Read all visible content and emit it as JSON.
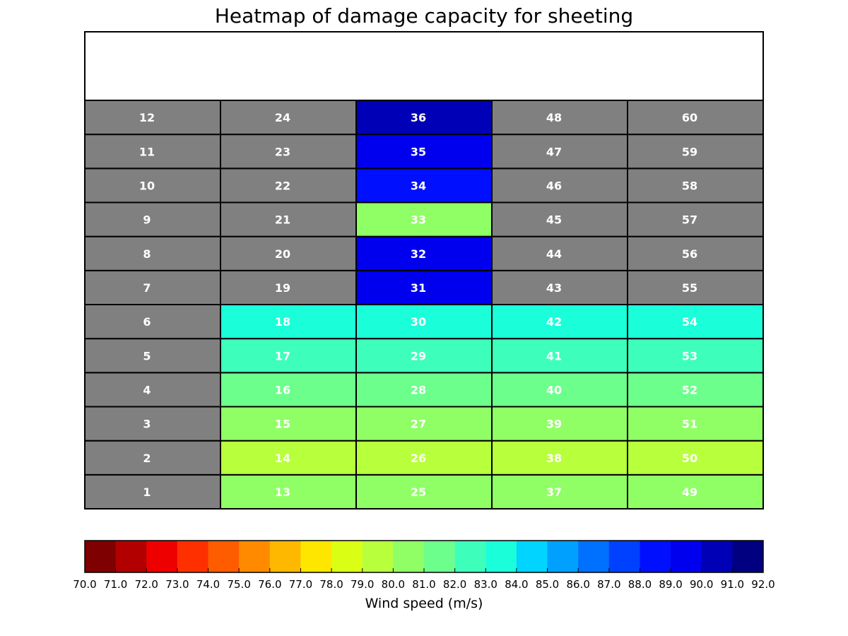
{
  "chart_data": {
    "type": "heatmap",
    "title": "Heatmap of damage capacity for sheeting",
    "colorbar": {
      "label": "Wind speed (m/s)",
      "min": 70.0,
      "max": 92.0,
      "step": 1.0,
      "ticks": [
        "70.0",
        "71.0",
        "72.0",
        "73.0",
        "74.0",
        "75.0",
        "76.0",
        "77.0",
        "78.0",
        "79.0",
        "80.0",
        "81.0",
        "82.0",
        "83.0",
        "84.0",
        "85.0",
        "86.0",
        "87.0",
        "88.0",
        "89.0",
        "90.0",
        "91.0",
        "92.0"
      ],
      "colors": [
        "#7f0000",
        "#b20000",
        "#ee0000",
        "#ff3000",
        "#ff5c00",
        "#ff8a00",
        "#ffb800",
        "#ffe600",
        "#dbff14",
        "#b8ff3c",
        "#90ff66",
        "#6cff8c",
        "#3dffbb",
        "#1affda",
        "#00d4ff",
        "#00a0ff",
        "#0070ff",
        "#0040ff",
        "#0010ff",
        "#0000ef",
        "#0000b6",
        "#000080"
      ]
    },
    "columns": 5,
    "rows": 12,
    "no_data_color": "#808080",
    "cells": [
      {
        "id": "1",
        "col": 0,
        "row": 1,
        "value": null
      },
      {
        "id": "2",
        "col": 0,
        "row": 2,
        "value": null
      },
      {
        "id": "3",
        "col": 0,
        "row": 3,
        "value": null
      },
      {
        "id": "4",
        "col": 0,
        "row": 4,
        "value": null
      },
      {
        "id": "5",
        "col": 0,
        "row": 5,
        "value": null
      },
      {
        "id": "6",
        "col": 0,
        "row": 6,
        "value": null
      },
      {
        "id": "7",
        "col": 0,
        "row": 7,
        "value": null
      },
      {
        "id": "8",
        "col": 0,
        "row": 8,
        "value": null
      },
      {
        "id": "9",
        "col": 0,
        "row": 9,
        "value": null
      },
      {
        "id": "10",
        "col": 0,
        "row": 10,
        "value": null
      },
      {
        "id": "11",
        "col": 0,
        "row": 11,
        "value": null
      },
      {
        "id": "12",
        "col": 0,
        "row": 12,
        "value": null
      },
      {
        "id": "13",
        "col": 1,
        "row": 1,
        "value": 80.5
      },
      {
        "id": "14",
        "col": 1,
        "row": 2,
        "value": 79.5
      },
      {
        "id": "15",
        "col": 1,
        "row": 3,
        "value": 80.5
      },
      {
        "id": "16",
        "col": 1,
        "row": 4,
        "value": 81.5
      },
      {
        "id": "17",
        "col": 1,
        "row": 5,
        "value": 82.5
      },
      {
        "id": "18",
        "col": 1,
        "row": 6,
        "value": 83.5
      },
      {
        "id": "19",
        "col": 1,
        "row": 7,
        "value": null
      },
      {
        "id": "20",
        "col": 1,
        "row": 8,
        "value": null
      },
      {
        "id": "21",
        "col": 1,
        "row": 9,
        "value": null
      },
      {
        "id": "22",
        "col": 1,
        "row": 10,
        "value": null
      },
      {
        "id": "23",
        "col": 1,
        "row": 11,
        "value": null
      },
      {
        "id": "24",
        "col": 1,
        "row": 12,
        "value": null
      },
      {
        "id": "25",
        "col": 2,
        "row": 1,
        "value": 80.5
      },
      {
        "id": "26",
        "col": 2,
        "row": 2,
        "value": 79.5
      },
      {
        "id": "27",
        "col": 2,
        "row": 3,
        "value": 80.5
      },
      {
        "id": "28",
        "col": 2,
        "row": 4,
        "value": 81.5
      },
      {
        "id": "29",
        "col": 2,
        "row": 5,
        "value": 82.5
      },
      {
        "id": "30",
        "col": 2,
        "row": 6,
        "value": 83.5
      },
      {
        "id": "31",
        "col": 2,
        "row": 7,
        "value": 89.5
      },
      {
        "id": "32",
        "col": 2,
        "row": 8,
        "value": 89.5
      },
      {
        "id": "33",
        "col": 2,
        "row": 9,
        "value": 80.5
      },
      {
        "id": "34",
        "col": 2,
        "row": 10,
        "value": 88.5
      },
      {
        "id": "35",
        "col": 2,
        "row": 11,
        "value": 89.5
      },
      {
        "id": "36",
        "col": 2,
        "row": 12,
        "value": 90.5
      },
      {
        "id": "37",
        "col": 3,
        "row": 1,
        "value": 80.5
      },
      {
        "id": "38",
        "col": 3,
        "row": 2,
        "value": 79.5
      },
      {
        "id": "39",
        "col": 3,
        "row": 3,
        "value": 80.5
      },
      {
        "id": "40",
        "col": 3,
        "row": 4,
        "value": 81.5
      },
      {
        "id": "41",
        "col": 3,
        "row": 5,
        "value": 82.5
      },
      {
        "id": "42",
        "col": 3,
        "row": 6,
        "value": 83.5
      },
      {
        "id": "43",
        "col": 3,
        "row": 7,
        "value": null
      },
      {
        "id": "44",
        "col": 3,
        "row": 8,
        "value": null
      },
      {
        "id": "45",
        "col": 3,
        "row": 9,
        "value": null
      },
      {
        "id": "46",
        "col": 3,
        "row": 10,
        "value": null
      },
      {
        "id": "47",
        "col": 3,
        "row": 11,
        "value": null
      },
      {
        "id": "48",
        "col": 3,
        "row": 12,
        "value": null
      },
      {
        "id": "49",
        "col": 4,
        "row": 1,
        "value": 80.5
      },
      {
        "id": "50",
        "col": 4,
        "row": 2,
        "value": 79.5
      },
      {
        "id": "51",
        "col": 4,
        "row": 3,
        "value": 80.5
      },
      {
        "id": "52",
        "col": 4,
        "row": 4,
        "value": 81.5
      },
      {
        "id": "53",
        "col": 4,
        "row": 5,
        "value": 82.5
      },
      {
        "id": "54",
        "col": 4,
        "row": 6,
        "value": 83.5
      },
      {
        "id": "55",
        "col": 4,
        "row": 7,
        "value": null
      },
      {
        "id": "56",
        "col": 4,
        "row": 8,
        "value": null
      },
      {
        "id": "57",
        "col": 4,
        "row": 9,
        "value": null
      },
      {
        "id": "58",
        "col": 4,
        "row": 10,
        "value": null
      },
      {
        "id": "59",
        "col": 4,
        "row": 11,
        "value": null
      },
      {
        "id": "60",
        "col": 4,
        "row": 12,
        "value": null
      }
    ]
  }
}
